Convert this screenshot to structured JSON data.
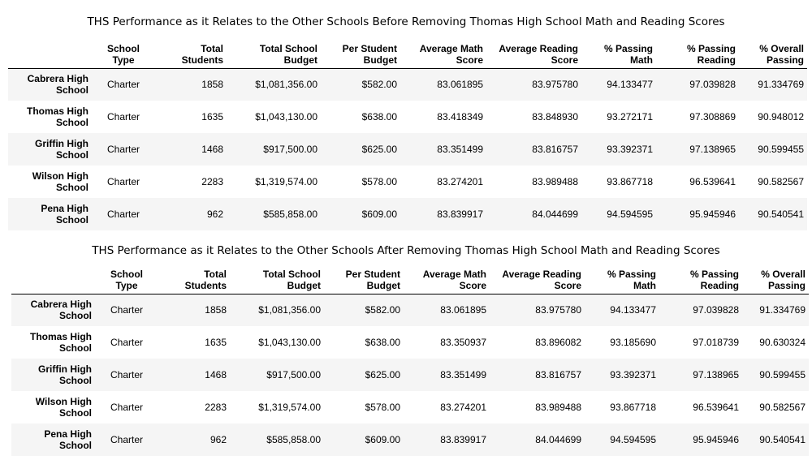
{
  "columns": {
    "school_type": [
      "School",
      "Type"
    ],
    "total_students": [
      "Total",
      "Students"
    ],
    "total_budget": [
      "Total School",
      "Budget"
    ],
    "per_student": [
      "Per Student",
      "Budget"
    ],
    "avg_math": [
      "Average Math",
      "Score"
    ],
    "avg_reading": [
      "Average Reading",
      "Score"
    ],
    "pct_math": [
      "% Passing",
      "Math"
    ],
    "pct_reading": [
      "% Passing",
      "Reading"
    ],
    "pct_overall": [
      "% Overall",
      "Passing"
    ]
  },
  "tables": [
    {
      "title": "THS Performance as it Relates to the Other Schools Before Removing Thomas High School Math and Reading Scores",
      "rows": [
        {
          "school": [
            "Cabrera High",
            "School"
          ],
          "type": "Charter",
          "students": "1858",
          "budget": "$1,081,356.00",
          "per_student": "$582.00",
          "avg_math": "83.061895",
          "avg_reading": "83.975780",
          "pct_math": "94.133477",
          "pct_reading": "97.039828",
          "pct_overall": "91.334769"
        },
        {
          "school": [
            "Thomas High",
            "School"
          ],
          "type": "Charter",
          "students": "1635",
          "budget": "$1,043,130.00",
          "per_student": "$638.00",
          "avg_math": "83.418349",
          "avg_reading": "83.848930",
          "pct_math": "93.272171",
          "pct_reading": "97.308869",
          "pct_overall": "90.948012"
        },
        {
          "school": [
            "Griffin High",
            "School"
          ],
          "type": "Charter",
          "students": "1468",
          "budget": "$917,500.00",
          "per_student": "$625.00",
          "avg_math": "83.351499",
          "avg_reading": "83.816757",
          "pct_math": "93.392371",
          "pct_reading": "97.138965",
          "pct_overall": "90.599455"
        },
        {
          "school": [
            "Wilson High",
            "School"
          ],
          "type": "Charter",
          "students": "2283",
          "budget": "$1,319,574.00",
          "per_student": "$578.00",
          "avg_math": "83.274201",
          "avg_reading": "83.989488",
          "pct_math": "93.867718",
          "pct_reading": "96.539641",
          "pct_overall": "90.582567"
        },
        {
          "school": [
            "Pena High",
            "School"
          ],
          "type": "Charter",
          "students": "962",
          "budget": "$585,858.00",
          "per_student": "$609.00",
          "avg_math": "83.839917",
          "avg_reading": "84.044699",
          "pct_math": "94.594595",
          "pct_reading": "95.945946",
          "pct_overall": "90.540541"
        }
      ]
    },
    {
      "title": "THS Performance as it Relates to the Other Schools After Removing Thomas High School Math and Reading Scores",
      "rows": [
        {
          "school": [
            "Cabrera High",
            "School"
          ],
          "type": "Charter",
          "students": "1858",
          "budget": "$1,081,356.00",
          "per_student": "$582.00",
          "avg_math": "83.061895",
          "avg_reading": "83.975780",
          "pct_math": "94.133477",
          "pct_reading": "97.039828",
          "pct_overall": "91.334769"
        },
        {
          "school": [
            "Thomas High",
            "School"
          ],
          "type": "Charter",
          "students": "1635",
          "budget": "$1,043,130.00",
          "per_student": "$638.00",
          "avg_math": "83.350937",
          "avg_reading": "83.896082",
          "pct_math": "93.185690",
          "pct_reading": "97.018739",
          "pct_overall": "90.630324"
        },
        {
          "school": [
            "Griffin High",
            "School"
          ],
          "type": "Charter",
          "students": "1468",
          "budget": "$917,500.00",
          "per_student": "$625.00",
          "avg_math": "83.351499",
          "avg_reading": "83.816757",
          "pct_math": "93.392371",
          "pct_reading": "97.138965",
          "pct_overall": "90.599455"
        },
        {
          "school": [
            "Wilson High",
            "School"
          ],
          "type": "Charter",
          "students": "2283",
          "budget": "$1,319,574.00",
          "per_student": "$578.00",
          "avg_math": "83.274201",
          "avg_reading": "83.989488",
          "pct_math": "93.867718",
          "pct_reading": "96.539641",
          "pct_overall": "90.582567"
        },
        {
          "school": [
            "Pena High",
            "School"
          ],
          "type": "Charter",
          "students": "962",
          "budget": "$585,858.00",
          "per_student": "$609.00",
          "avg_math": "83.839917",
          "avg_reading": "84.044699",
          "pct_math": "94.594595",
          "pct_reading": "95.945946",
          "pct_overall": "90.540541"
        }
      ]
    }
  ]
}
